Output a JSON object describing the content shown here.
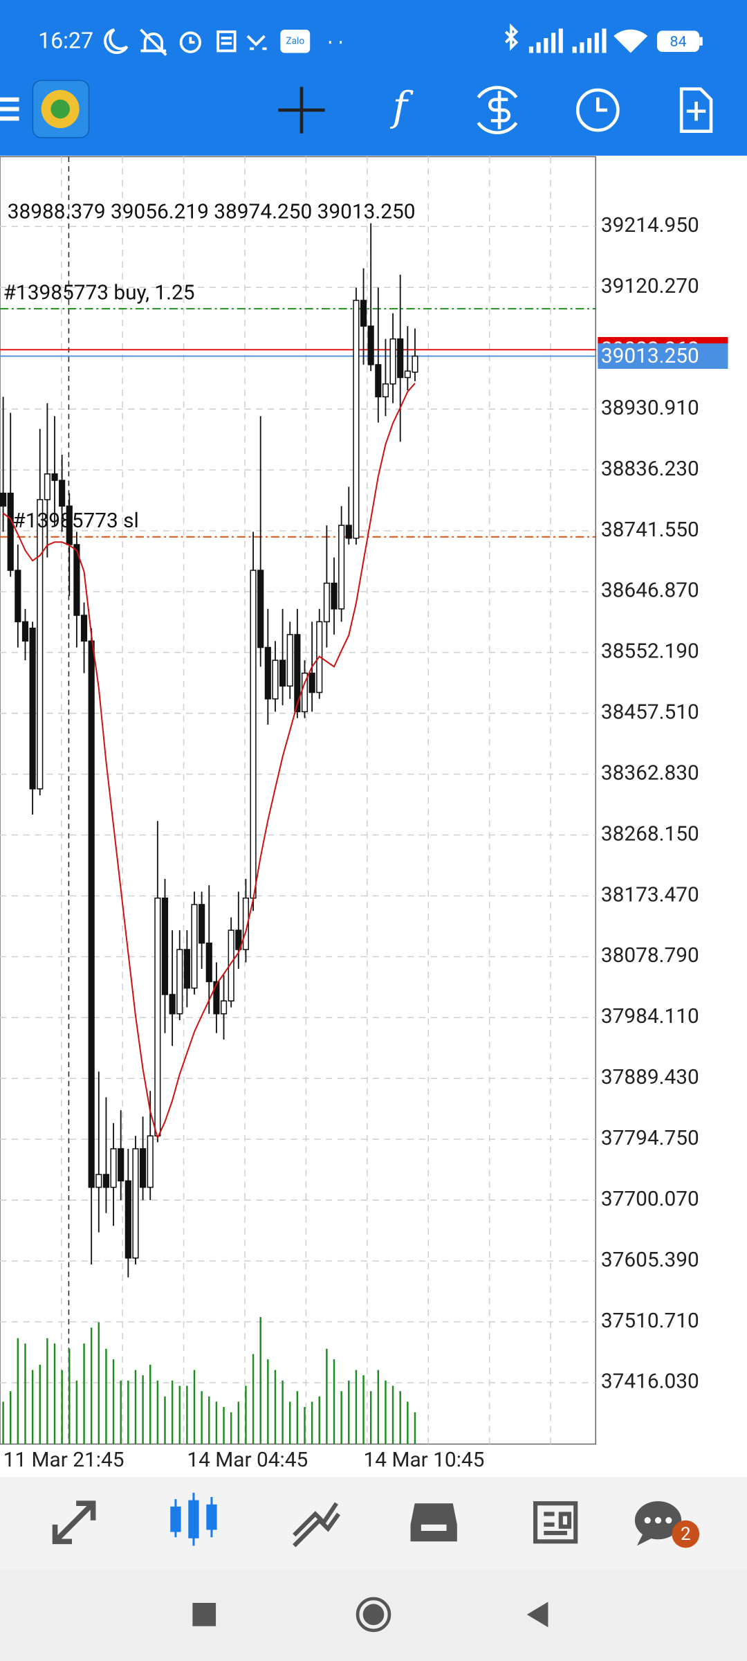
{
  "status_bar": {
    "time": "16:27",
    "app_badge": "Zalo",
    "battery": "84"
  },
  "toolbar": {
    "function_icon": "f"
  },
  "chart_data": {
    "type": "candlestick",
    "ohlc_label": "38988.379 39056.219 38974.250 39013.250",
    "ylim": [
      37320.5,
      39323.6
    ],
    "yticks": [
      {
        "value": 39214.95,
        "label": "39214.950"
      },
      {
        "value": 39120.27,
        "label": "39120.270"
      },
      {
        "value": 38930.91,
        "label": "38930.910"
      },
      {
        "value": 38836.23,
        "label": "38836.230"
      },
      {
        "value": 38741.55,
        "label": "38741.550"
      },
      {
        "value": 38646.87,
        "label": "38646.870"
      },
      {
        "value": 38552.19,
        "label": "38552.190"
      },
      {
        "value": 38457.51,
        "label": "38457.510"
      },
      {
        "value": 38362.83,
        "label": "38362.830"
      },
      {
        "value": 38268.15,
        "label": "38268.150"
      },
      {
        "value": 38173.47,
        "label": "38173.470"
      },
      {
        "value": 38078.79,
        "label": "38078.790"
      },
      {
        "value": 37984.11,
        "label": "37984.110"
      },
      {
        "value": 37889.43,
        "label": "37889.430"
      },
      {
        "value": 37794.75,
        "label": "37794.750"
      },
      {
        "value": 37700.07,
        "label": "37700.070"
      },
      {
        "value": 37605.39,
        "label": "37605.390"
      },
      {
        "value": 37510.71,
        "label": "37510.710"
      },
      {
        "value": 37416.03,
        "label": "37416.030"
      }
    ],
    "x_labels": [
      "11 Mar 21:45",
      "14 Mar 04:45",
      "14 Mar 10:45"
    ],
    "open": [
      38800,
      38800,
      38680,
      38600,
      38590,
      38340,
      38790,
      38830,
      38820,
      38780,
      38720,
      38610,
      38570,
      37720,
      37740,
      37720,
      37780,
      37730,
      37610,
      37780,
      37720,
      37800,
      38170,
      38020,
      37990,
      38090,
      38030,
      38160,
      38100,
      38040,
      37990,
      38010,
      38120,
      38090,
      38170,
      38680,
      38560,
      38480,
      38540,
      38500,
      38580,
      38460,
      38520,
      38490,
      38600,
      38660,
      38620,
      38750,
      38730,
      39100,
      39060,
      39000,
      38950,
      38970,
      39040,
      38980,
      38988.379
    ],
    "high": [
      38950,
      38925,
      38720,
      38620,
      38600,
      38900,
      38940,
      38920,
      38860,
      38800,
      38740,
      38630,
      38590,
      37900,
      37860,
      37820,
      37840,
      37780,
      37800,
      37830,
      37870,
      38290,
      38200,
      38120,
      38120,
      38120,
      38180,
      38180,
      38190,
      38070,
      38050,
      38140,
      38180,
      38200,
      38740,
      38920,
      38620,
      38570,
      38620,
      38600,
      38620,
      38540,
      38600,
      38620,
      38750,
      38700,
      38780,
      38810,
      39120,
      39150,
      39220,
      39120,
      39040,
      39080,
      39140,
      39060,
      39056.219
    ],
    "low": [
      38740,
      38670,
      38560,
      38540,
      38300,
      38330,
      38700,
      38750,
      38740,
      38640,
      38560,
      38520,
      37600,
      37650,
      37680,
      37660,
      37700,
      37580,
      37600,
      37700,
      37700,
      37790,
      37960,
      37940,
      37980,
      38000,
      38020,
      38060,
      37990,
      37960,
      37950,
      38000,
      38060,
      38070,
      38150,
      38530,
      38440,
      38460,
      38470,
      38480,
      38450,
      38450,
      38460,
      38480,
      38560,
      38580,
      38600,
      38720,
      38720,
      39000,
      38990,
      38910,
      38920,
      38940,
      38880,
      38960,
      38974.25
    ],
    "close": [
      38780,
      38680,
      38600,
      38570,
      38340,
      38790,
      38830,
      38820,
      38780,
      38720,
      38610,
      38570,
      37720,
      37740,
      37720,
      37780,
      37730,
      37610,
      37780,
      37720,
      37800,
      38170,
      38020,
      37990,
      38090,
      38030,
      38160,
      38100,
      38040,
      37990,
      38010,
      38120,
      38090,
      38170,
      38680,
      38560,
      38480,
      38540,
      38500,
      38580,
      38460,
      38520,
      38490,
      38600,
      38660,
      38620,
      38750,
      38730,
      39100,
      39060,
      39000,
      38950,
      38970,
      39040,
      38980,
      38990,
      39013.25
    ],
    "ma": {
      "color": "#d01010",
      "values": [
        38769,
        38760,
        38736,
        38711,
        38695,
        38703,
        38719,
        38724,
        38724,
        38719,
        38711,
        38678,
        38579,
        38497,
        38382,
        38283,
        38184,
        38085,
        37987,
        37904,
        37838,
        37797,
        37822,
        37855,
        37896,
        37929,
        37962,
        37987,
        38011,
        38036,
        38052,
        38069,
        38085,
        38118,
        38168,
        38234,
        38291,
        38341,
        38390,
        38431,
        38472,
        38505,
        38530,
        38546,
        38538,
        38530,
        38555,
        38579,
        38629,
        38695,
        38760,
        38826,
        38876,
        38909,
        38933,
        38958,
        38971
      ]
    },
    "volume": {
      "color": "#1e8c1e",
      "ylim": [
        0,
        130
      ],
      "values": [
        40,
        50,
        100,
        95,
        70,
        75,
        100,
        95,
        70,
        90,
        60,
        95,
        110,
        115,
        90,
        80,
        60,
        60,
        70,
        65,
        75,
        60,
        45,
        60,
        55,
        55,
        70,
        50,
        45,
        40,
        35,
        30,
        40,
        55,
        85,
        120,
        80,
        70,
        60,
        40,
        50,
        35,
        40,
        45,
        90,
        80,
        50,
        60,
        70,
        65,
        50,
        70,
        60,
        55,
        50,
        40,
        30
      ]
    },
    "order_lines": [
      {
        "name": "#13985773 buy, 1.25",
        "value": 39087,
        "color": "#1f8f1f"
      },
      {
        "name": "#13985773 sl",
        "value": 38732,
        "color": "#e05010"
      }
    ],
    "price_tags": [
      {
        "value": 39023.262,
        "color": "#e00000"
      },
      {
        "value": 39013.25,
        "label": "39013.250",
        "color": "#4a90e2"
      }
    ]
  },
  "bottom_nav": {
    "chat_badge": "2"
  }
}
